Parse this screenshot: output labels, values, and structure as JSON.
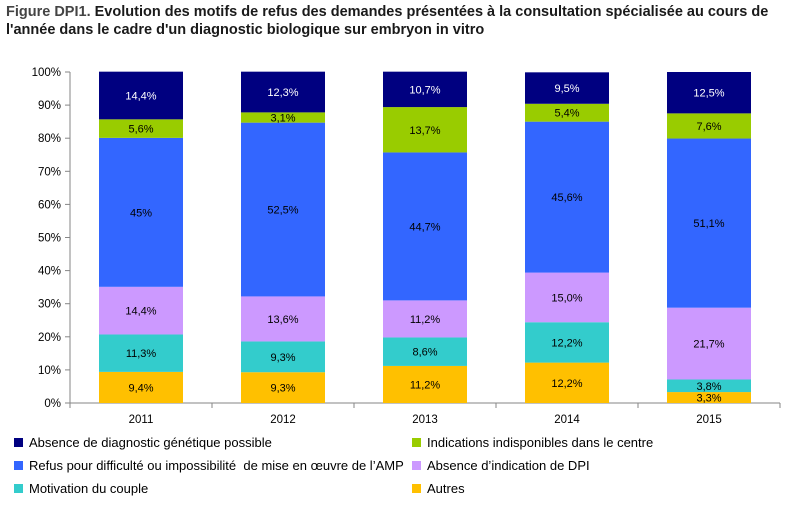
{
  "title": {
    "prefix": "Figure DPI1.",
    "text": " Evolution des motifs de refus des demandes présentées à la consultation spécialisée au cours de l'année dans le cadre d'un diagnostic biologique sur embryon in vitro"
  },
  "chart_data": {
    "type": "bar",
    "stacked": true,
    "categories": [
      "2011",
      "2012",
      "2013",
      "2014",
      "2015"
    ],
    "ylim": [
      0,
      100
    ],
    "yticks": [
      "0%",
      "10%",
      "20%",
      "30%",
      "40%",
      "50%",
      "60%",
      "70%",
      "80%",
      "90%",
      "100%"
    ],
    "grid": false,
    "legend_position": "bottom",
    "series": [
      {
        "name": "Autres",
        "color": "#FFC000",
        "values": [
          9.4,
          9.3,
          11.2,
          12.2,
          3.3
        ],
        "labels": [
          "9,4%",
          "9,3%",
          "11,2%",
          "12,2%",
          "3,3%"
        ]
      },
      {
        "name": "Motivation du couple",
        "color": "#33CCCC",
        "values": [
          11.3,
          9.3,
          8.6,
          12.2,
          3.8
        ],
        "labels": [
          "11,3%",
          "9,3%",
          "8,6%",
          "12,2%",
          "3,8%"
        ]
      },
      {
        "name": "Absence d’indication de DPI",
        "color": "#CC99FF",
        "values": [
          14.4,
          13.6,
          11.2,
          15.0,
          21.7
        ],
        "labels": [
          "14,4%",
          "13,6%",
          "11,2%",
          "15,0%",
          "21,7%"
        ]
      },
      {
        "name": "Refus pour difficulté ou impossibilité  de mise en œuvre de l’AMP",
        "color": "#3366FF",
        "values": [
          45,
          52.5,
          44.7,
          45.6,
          51.1
        ],
        "labels": [
          "45%",
          "52,5%",
          "44,7%",
          "45,6%",
          "51,1%"
        ]
      },
      {
        "name": "Indications indisponibles dans le centre",
        "color": "#99CC00",
        "values": [
          5.6,
          3.1,
          13.7,
          5.4,
          7.6
        ],
        "labels": [
          "5,6%",
          "3,1%",
          "13,7%",
          "5,4%",
          "7,6%"
        ]
      },
      {
        "name": "Absence de diagnostic génétique possible",
        "color": "#000080",
        "values": [
          14.4,
          12.3,
          10.7,
          9.5,
          12.5
        ],
        "labels": [
          "14,4%",
          "12,3%",
          "10,7%",
          "9,5%",
          "12,5%"
        ]
      }
    ],
    "legend_order": [
      "Absence de diagnostic génétique possible",
      "Indications indisponibles dans le centre",
      "Refus pour difficulté ou impossibilité  de mise en œuvre de l’AMP",
      "Absence d’indication de DPI",
      "Motivation du couple",
      "Autres"
    ]
  }
}
